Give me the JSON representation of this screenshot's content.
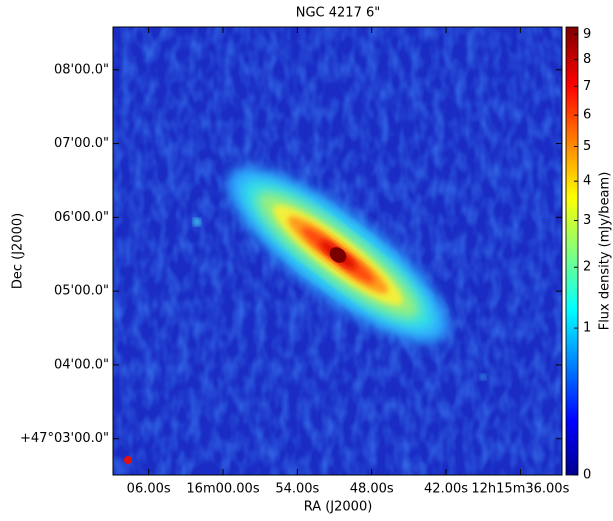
{
  "chart_data": {
    "type": "image",
    "title": "NGC 4217 6\"",
    "xlabel": "RA (J2000)",
    "ylabel": "Dec (J2000)",
    "colorbar_label": "Flux density (mJy/beam)",
    "xlim": [
      184.037,
      183.886
    ],
    "ylim": [
      47.0418,
      47.143
    ],
    "xticks": [
      {
        "value": 184.025,
        "label": "06.00s"
      },
      {
        "value": 184.0,
        "label": "16m00.00s"
      },
      {
        "value": 183.975,
        "label": "54.00s"
      },
      {
        "value": 183.95,
        "label": "48.00s"
      },
      {
        "value": 183.925,
        "label": "42.00s"
      },
      {
        "value": 183.9,
        "label": "12h15m36.00s"
      }
    ],
    "yticks": [
      {
        "value": 47.05,
        "label": "+47°03'00.0\""
      },
      {
        "value": 47.0666667,
        "label": "04'00.0\""
      },
      {
        "value": 47.0833333,
        "label": "05'00.0\""
      },
      {
        "value": 47.1,
        "label": "06'00.0\""
      },
      {
        "value": 47.1166667,
        "label": "07'00.0\""
      },
      {
        "value": 47.1333333,
        "label": "08'00.0\""
      }
    ],
    "colorbar_lim": [
      0,
      9.3
    ],
    "colorbar_scale": "sqrt",
    "colorbar_ticks": [
      0,
      1,
      2,
      3,
      4,
      5,
      6,
      7,
      8,
      9
    ],
    "colormap": "jet"
  }
}
